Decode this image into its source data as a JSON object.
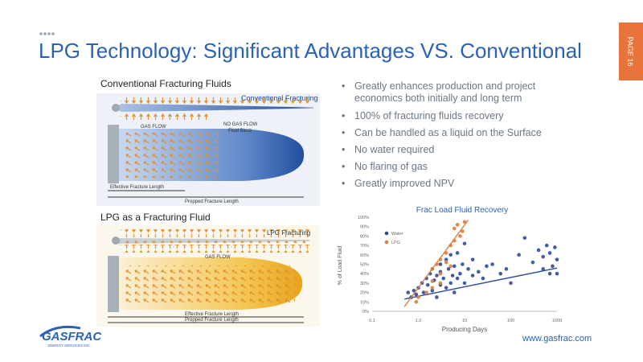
{
  "header": {
    "title": "LPG Technology: Significant Advantages VS. Conventional",
    "page": "PAGE 16"
  },
  "bullets": [
    "Greatly enhances production and project economics both initially and long term",
    "100% of fracturing fluids recovery",
    "Can be handled as a liquid on the Surface",
    "No water required",
    "No flaring of gas",
    "Greatly improved NPV"
  ],
  "diagrams": [
    {
      "title": "Conventional Fracturing Fluids",
      "wellbore_label": "Conventional Fracturing",
      "labels": [
        "GAS FLOW",
        "NO GAS FLOW",
        "Fluid Block"
      ],
      "effective": "Effective Fracture Length",
      "propped": "Propped Fracture Length"
    },
    {
      "title": "LPG as a Fracturing Fluid",
      "wellbore_label": "LPG Fracturing",
      "labels": [
        "GAS FLOW"
      ],
      "effective": "Effective Fracture Length",
      "propped": "Propped Fracture Length"
    }
  ],
  "chart_data": {
    "type": "scatter",
    "title": "Frac Load Fluid Recovery",
    "x_label": "Producing Days",
    "y_label": "% of Load Fluid",
    "xscale": "log",
    "xlim": [
      0.1,
      1000
    ],
    "xticks": [
      0.1,
      {
        "value": 1,
        "label": "1.0"
      },
      10,
      100,
      1000
    ],
    "ylim": [
      0,
      100
    ],
    "yticks": [
      {
        "value": 0,
        "label": "0%"
      },
      {
        "value": 10,
        "label": "10%"
      },
      {
        "value": 20,
        "label": "20%"
      },
      {
        "value": 30,
        "label": "30%"
      },
      {
        "value": 40,
        "label": "40%"
      },
      {
        "value": 50,
        "label": "50%"
      },
      {
        "value": 60,
        "label": "60%"
      },
      {
        "value": 70,
        "label": "70%"
      },
      {
        "value": 80,
        "label": "80%"
      },
      {
        "value": 90,
        "label": "90%"
      },
      {
        "value": 100,
        "label": "100%"
      }
    ],
    "grid": false,
    "legend": "upper left",
    "series": [
      {
        "name": "Water",
        "color": "#2f4a9c",
        "x": [
          0.6,
          0.7,
          0.8,
          0.9,
          1,
          1.2,
          1.3,
          1.5,
          1.6,
          1.8,
          2,
          2,
          2.2,
          2.5,
          2.5,
          3,
          3,
          3,
          3.5,
          4,
          4,
          4.5,
          5,
          5,
          5.5,
          6,
          6,
          7,
          7,
          8,
          9,
          10,
          10,
          12,
          15,
          15,
          20,
          25,
          30,
          40,
          60,
          80,
          100,
          150,
          200,
          300,
          400,
          500,
          500,
          600,
          700,
          700,
          800,
          900,
          1000,
          1000
        ],
        "values": [
          20,
          15,
          22,
          18,
          25,
          30,
          20,
          35,
          28,
          40,
          45,
          22,
          33,
          38,
          15,
          50,
          28,
          42,
          35,
          55,
          25,
          45,
          60,
          30,
          38,
          48,
          20,
          62,
          35,
          40,
          50,
          72,
          30,
          45,
          38,
          55,
          42,
          35,
          48,
          50,
          40,
          45,
          30,
          60,
          78,
          52,
          65,
          58,
          45,
          70,
          62,
          40,
          48,
          68,
          40,
          55
        ],
        "trendline": {
          "x": [
            0.5,
            1000
          ],
          "y": [
            13,
            46
          ]
        }
      },
      {
        "name": "LPG",
        "color": "#e07b3a",
        "x": [
          0.9,
          1,
          1.5,
          2,
          2,
          2.5,
          3,
          3,
          4,
          5,
          5,
          6,
          6,
          7,
          8,
          9,
          10,
          4,
          3,
          2
        ],
        "values": [
          10,
          15,
          20,
          32,
          45,
          50,
          55,
          40,
          62,
          70,
          48,
          75,
          88,
          92,
          80,
          85,
          95,
          52,
          30,
          25
        ],
        "trendline": {
          "x": [
            0.5,
            12
          ],
          "y": [
            5,
            97
          ]
        }
      }
    ]
  },
  "footer": {
    "url": "www.gasfrac.com",
    "logo": "GASFRAC",
    "logo_sub": "ENERGY SERVICES INC."
  }
}
